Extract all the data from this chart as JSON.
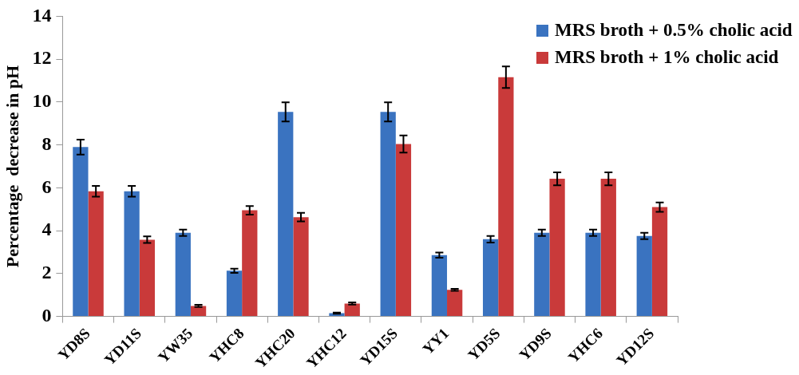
{
  "chart_data": {
    "type": "bar",
    "ylabel": "Percentage  decrease in pH",
    "categories": [
      "YD8S",
      "YD11S",
      "YW35",
      "YHC8",
      "YHC20",
      "YHC12",
      "YD15S",
      "YY1",
      "YD5S",
      "YD9S",
      "YHC6",
      "YD12S"
    ],
    "series": [
      {
        "name": "MRS broth + 0.5% cholic acid",
        "color": "#3a73c0",
        "values": [
          7.9,
          5.84,
          3.9,
          2.13,
          9.54,
          0.15,
          9.54,
          2.86,
          3.6,
          3.9,
          3.9,
          3.75
        ],
        "errors": [
          0.35,
          0.25,
          0.15,
          0.1,
          0.45,
          0.03,
          0.45,
          0.12,
          0.15,
          0.15,
          0.15,
          0.15
        ]
      },
      {
        "name": "MRS broth + 1% cholic acid",
        "color": "#c93a3a",
        "values": [
          5.84,
          3.58,
          0.49,
          4.95,
          4.63,
          0.6,
          8.04,
          1.24,
          11.16,
          6.42,
          6.42,
          5.1
        ],
        "errors": [
          0.25,
          0.15,
          0.05,
          0.2,
          0.2,
          0.05,
          0.4,
          0.05,
          0.5,
          0.3,
          0.3,
          0.22
        ]
      }
    ],
    "ylim": [
      0,
      14
    ],
    "yticks": [
      0,
      2,
      4,
      6,
      8,
      10,
      12,
      14
    ],
    "grid": false,
    "legend": "top right"
  }
}
